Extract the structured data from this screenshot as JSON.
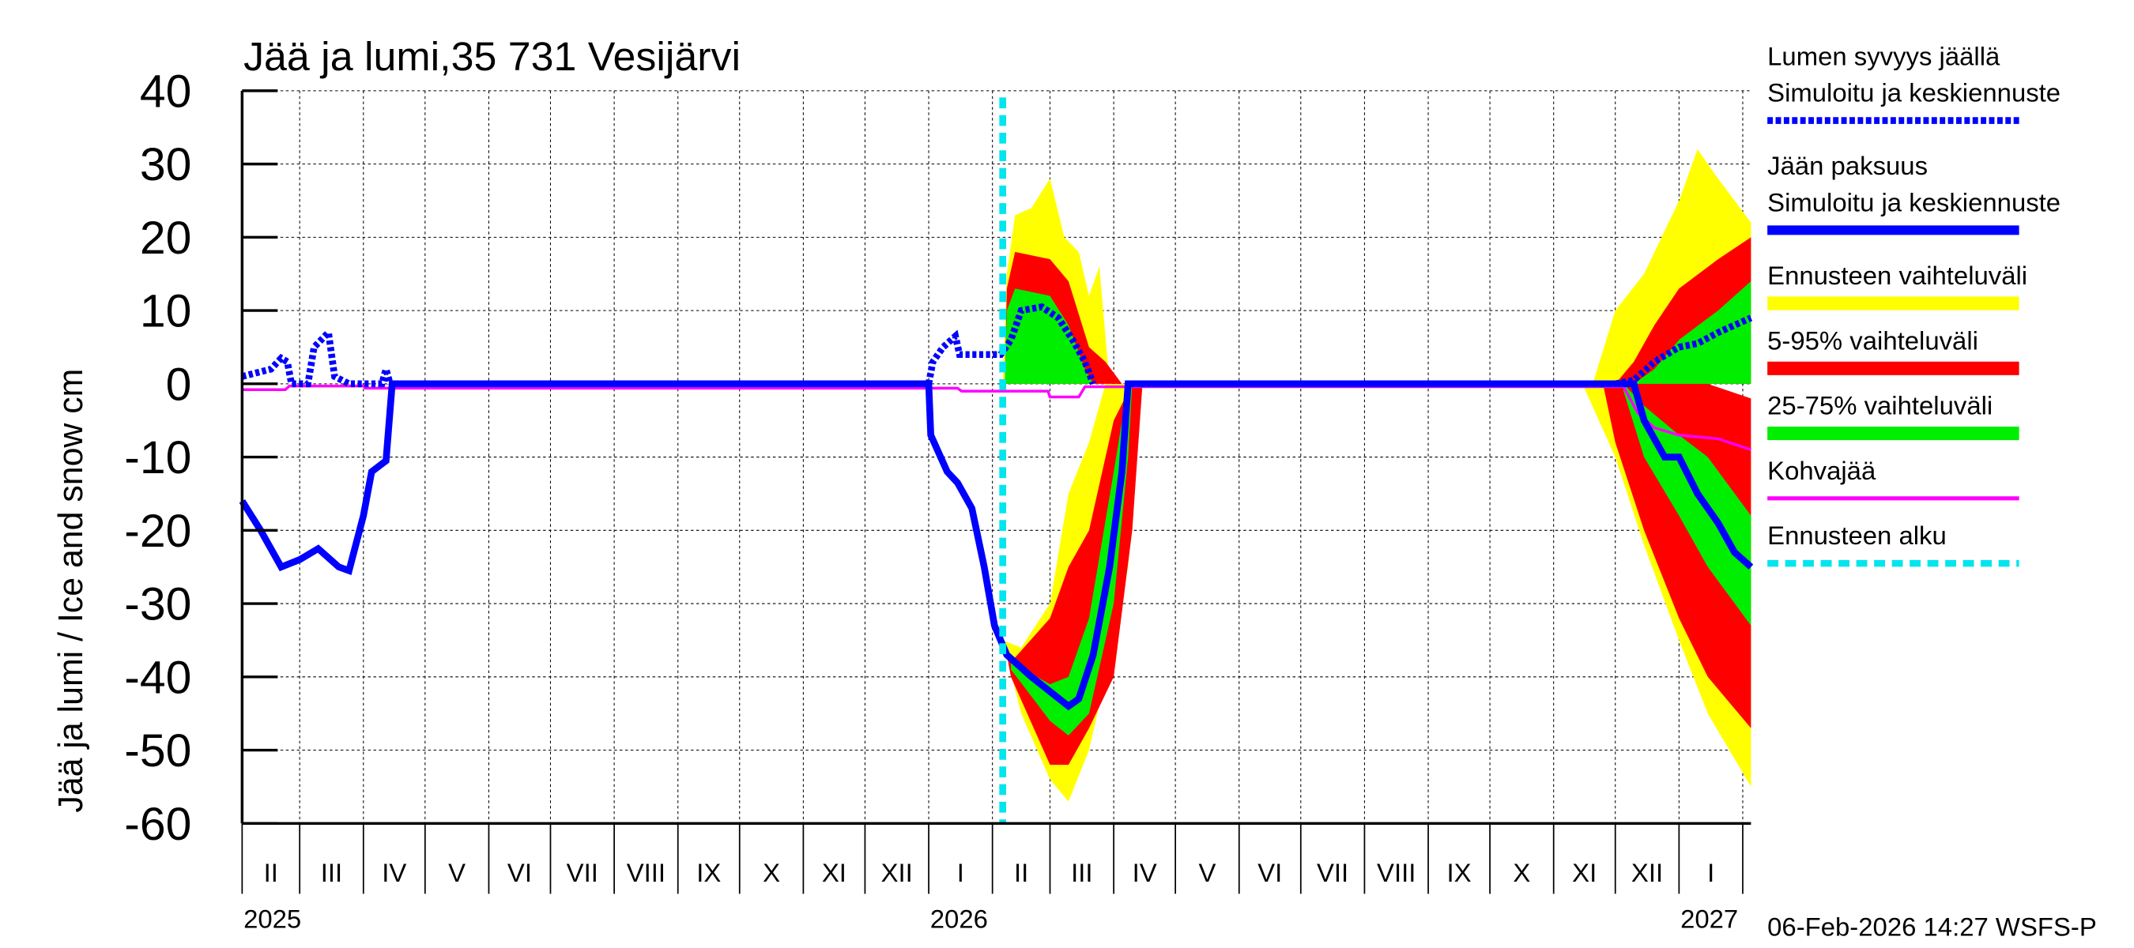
{
  "chart_data": {
    "type": "area",
    "title": "Jää ja lumi,35 731 Vesijärvi",
    "ylabel": "Jää ja lumi / Ice and snow    cm",
    "ylim": [
      -60,
      40
    ],
    "yticks": [
      40,
      30,
      20,
      10,
      0,
      -10,
      -20,
      -30,
      -40,
      -50,
      -60
    ],
    "xlim": [
      "2025-02-01",
      "2027-02-05"
    ],
    "grid": true,
    "legend_placement": "right",
    "months": [
      "II",
      "III",
      "IV",
      "V",
      "VI",
      "VII",
      "VIII",
      "IX",
      "X",
      "XI",
      "XII",
      "I",
      "II",
      "III",
      "IV",
      "V",
      "VI",
      "VII",
      "VIII",
      "IX",
      "X",
      "XI",
      "XII",
      "I"
    ],
    "month_starts": [
      "2025-02-01",
      "2025-03-01",
      "2025-04-01",
      "2025-05-01",
      "2025-06-01",
      "2025-07-01",
      "2025-08-01",
      "2025-09-01",
      "2025-10-01",
      "2025-11-01",
      "2025-12-01",
      "2026-01-01",
      "2026-02-01",
      "2026-03-01",
      "2026-04-01",
      "2026-05-01",
      "2026-06-01",
      "2026-07-01",
      "2026-08-01",
      "2026-09-01",
      "2026-10-01",
      "2026-11-01",
      "2026-12-01",
      "2027-01-01",
      "2027-02-01"
    ],
    "years": [
      {
        "label": "2025",
        "date": "2025-02-01"
      },
      {
        "label": "2026",
        "date": "2026-01-01"
      },
      {
        "label": "2027",
        "date": "2027-01-01"
      }
    ],
    "forecast_start": "2026-02-06",
    "colors": {
      "snow": "#0000ff",
      "ice": "#0000ff",
      "range": "#ffff00",
      "p5_95": "#ff0000",
      "p25_75": "#00ee00",
      "slush": "#ff00ff",
      "forecast_start": "#00e5ee"
    },
    "bands": {
      "range": [
        [
          [
            "2026-02-06",
            0,
            0
          ],
          [
            "2026-02-08",
            0,
            15
          ],
          [
            "2026-02-12",
            0,
            23
          ],
          [
            "2026-02-20",
            0,
            24
          ],
          [
            "2026-03-01",
            0,
            28
          ],
          [
            "2026-03-08",
            0,
            20
          ],
          [
            "2026-03-15",
            0,
            18
          ],
          [
            "2026-03-20",
            0,
            12
          ],
          [
            "2026-03-25",
            0,
            16
          ],
          [
            "2026-03-30",
            0,
            0
          ]
        ],
        [
          [
            "2026-02-06",
            -35,
            -35
          ],
          [
            "2026-02-15",
            -36,
            -45
          ],
          [
            "2026-03-01",
            -30,
            -54
          ],
          [
            "2026-03-10",
            -15,
            -57
          ],
          [
            "2026-03-20",
            -8,
            -50
          ],
          [
            "2026-03-28",
            0,
            -40
          ],
          [
            "2026-04-08",
            0,
            -25
          ],
          [
            "2026-04-15",
            0,
            0
          ]
        ],
        [
          [
            "2026-11-20",
            0,
            0
          ],
          [
            "2026-12-01",
            0,
            10
          ],
          [
            "2026-12-15",
            0,
            15
          ],
          [
            "2027-01-01",
            0,
            25
          ],
          [
            "2027-01-10",
            0,
            32
          ],
          [
            "2027-01-20",
            0,
            28
          ],
          [
            "2027-02-05",
            0,
            22
          ]
        ],
        [
          [
            "2026-11-15",
            0,
            0
          ],
          [
            "2026-12-01",
            -10,
            0
          ],
          [
            "2026-12-15",
            -22,
            0
          ],
          [
            "2027-01-01",
            -35,
            0
          ],
          [
            "2027-01-15",
            -45,
            -5
          ],
          [
            "2027-02-05",
            -55,
            -10
          ]
        ]
      ],
      "p5_95": [
        [
          [
            "2026-02-07",
            0,
            0
          ],
          [
            "2026-02-08",
            0,
            13
          ],
          [
            "2026-02-12",
            0,
            18
          ],
          [
            "2026-03-01",
            0,
            17
          ],
          [
            "2026-03-10",
            0,
            14
          ],
          [
            "2026-03-20",
            0,
            5
          ],
          [
            "2026-03-28",
            0,
            3
          ],
          [
            "2026-04-05",
            0,
            0
          ]
        ],
        [
          [
            "2026-02-08",
            -37,
            -37
          ],
          [
            "2026-02-10",
            -38,
            -40
          ],
          [
            "2026-03-01",
            -32,
            -52
          ],
          [
            "2026-03-10",
            -25,
            -52
          ],
          [
            "2026-03-20",
            -20,
            -47
          ],
          [
            "2026-04-01",
            -5,
            -40
          ],
          [
            "2026-04-10",
            0,
            -20
          ],
          [
            "2026-04-15",
            0,
            0
          ]
        ],
        [
          [
            "2026-12-01",
            0,
            0
          ],
          [
            "2026-12-10",
            0,
            3
          ],
          [
            "2026-12-20",
            0,
            8
          ],
          [
            "2027-01-01",
            0,
            13
          ],
          [
            "2027-01-20",
            0,
            17
          ],
          [
            "2027-02-05",
            0,
            20
          ]
        ],
        [
          [
            "2026-11-25",
            0,
            0
          ],
          [
            "2026-12-01",
            -8,
            0
          ],
          [
            "2026-12-15",
            -20,
            0
          ],
          [
            "2027-01-01",
            -32,
            0
          ],
          [
            "2027-01-15",
            -40,
            0
          ],
          [
            "2027-02-05",
            -47,
            -2
          ]
        ]
      ],
      "p25_75": [
        [
          [
            "2026-02-07",
            0,
            0
          ],
          [
            "2026-02-08",
            0,
            10
          ],
          [
            "2026-02-12",
            0,
            13
          ],
          [
            "2026-03-01",
            0,
            12
          ],
          [
            "2026-03-10",
            0,
            8
          ],
          [
            "2026-03-18",
            0,
            2
          ],
          [
            "2026-03-22",
            0,
            0
          ]
        ],
        [
          [
            "2026-02-10",
            -38,
            -39
          ],
          [
            "2026-03-01",
            -41,
            -46
          ],
          [
            "2026-03-10",
            -40,
            -48
          ],
          [
            "2026-03-20",
            -32,
            -45
          ],
          [
            "2026-04-01",
            -12,
            -30
          ],
          [
            "2026-04-08",
            0,
            -10
          ],
          [
            "2026-04-10",
            0,
            0
          ]
        ],
        [
          [
            "2026-12-10",
            0,
            0
          ],
          [
            "2026-12-20",
            0,
            2
          ],
          [
            "2027-01-01",
            0,
            6
          ],
          [
            "2027-01-20",
            0,
            10
          ],
          [
            "2027-02-05",
            0,
            14
          ]
        ],
        [
          [
            "2026-12-05",
            -1,
            0
          ],
          [
            "2026-12-15",
            -10,
            -3
          ],
          [
            "2027-01-01",
            -18,
            -7
          ],
          [
            "2027-01-15",
            -25,
            -10
          ],
          [
            "2027-02-05",
            -33,
            -18
          ]
        ]
      ]
    },
    "series": [
      {
        "name": "Lumen syvyys jäällä",
        "style": "dotted",
        "segments": [
          [
            [
              "2025-02-01",
              1
            ],
            [
              "2025-02-15",
              2
            ],
            [
              "2025-02-20",
              3.5
            ],
            [
              "2025-02-23",
              3
            ],
            [
              "2025-02-25",
              0
            ],
            [
              "2025-03-05",
              0
            ],
            [
              "2025-03-08",
              5
            ],
            [
              "2025-03-15",
              7
            ],
            [
              "2025-03-18",
              1
            ],
            [
              "2025-03-25",
              0
            ],
            [
              "2025-04-10",
              0
            ],
            [
              "2025-04-12",
              2
            ],
            [
              "2025-04-14",
              0
            ]
          ],
          [
            [
              "2026-01-01",
              0
            ],
            [
              "2026-01-03",
              3
            ],
            [
              "2026-01-08",
              5
            ],
            [
              "2026-01-14",
              6.5
            ],
            [
              "2026-01-16",
              4
            ],
            [
              "2026-02-05",
              4
            ],
            [
              "2026-02-10",
              6
            ],
            [
              "2026-02-15",
              10
            ],
            [
              "2026-02-25",
              10.5
            ],
            [
              "2026-03-05",
              9
            ],
            [
              "2026-03-12",
              6
            ],
            [
              "2026-03-18",
              3
            ],
            [
              "2026-03-22",
              0
            ]
          ],
          [
            [
              "2026-12-01",
              0
            ],
            [
              "2026-12-10",
              0.5
            ],
            [
              "2026-12-20",
              3
            ],
            [
              "2027-01-01",
              5
            ],
            [
              "2027-01-10",
              5.5
            ],
            [
              "2027-01-20",
              7
            ],
            [
              "2027-02-05",
              9
            ]
          ]
        ]
      },
      {
        "name": "Jään paksuus",
        "style": "solid",
        "segments": [
          [
            [
              "2025-02-01",
              -16
            ],
            [
              "2025-02-10",
              -20
            ],
            [
              "2025-02-20",
              -25
            ],
            [
              "2025-03-01",
              -24
            ],
            [
              "2025-03-10",
              -22.5
            ],
            [
              "2025-03-20",
              -25
            ],
            [
              "2025-03-25",
              -25.5
            ],
            [
              "2025-04-01",
              -18
            ],
            [
              "2025-04-05",
              -12
            ],
            [
              "2025-04-12",
              -10.5
            ],
            [
              "2025-04-15",
              0
            ],
            [
              "2026-01-01",
              0
            ],
            [
              "2026-01-02",
              -7
            ],
            [
              "2026-01-10",
              -12
            ],
            [
              "2026-01-15",
              -13.5
            ],
            [
              "2026-01-22",
              -17
            ],
            [
              "2026-01-28",
              -25
            ],
            [
              "2026-02-02",
              -33
            ],
            [
              "2026-02-08",
              -37
            ],
            [
              "2026-02-20",
              -40
            ],
            [
              "2026-03-01",
              -42
            ],
            [
              "2026-03-10",
              -44
            ],
            [
              "2026-03-15",
              -43
            ],
            [
              "2026-03-22",
              -37
            ],
            [
              "2026-03-30",
              -25
            ],
            [
              "2026-04-05",
              -12
            ],
            [
              "2026-04-08",
              0
            ],
            [
              "2026-12-10",
              0
            ],
            [
              "2026-12-15",
              -5
            ],
            [
              "2026-12-25",
              -10
            ],
            [
              "2027-01-01",
              -10
            ],
            [
              "2027-01-10",
              -15
            ],
            [
              "2027-01-20",
              -19
            ],
            [
              "2027-01-28",
              -23
            ],
            [
              "2027-02-05",
              -25
            ]
          ]
        ]
      },
      {
        "name": "Kohvajää",
        "style": "thin",
        "segments": [
          [
            [
              "2025-02-01",
              -0.8
            ],
            [
              "2025-02-22",
              -0.8
            ],
            [
              "2025-02-24",
              -0.3
            ],
            [
              "2025-04-01",
              -0.3
            ],
            [
              "2025-04-02",
              -0.6
            ],
            [
              "2026-01-15",
              -0.6
            ],
            [
              "2026-01-17",
              -1
            ],
            [
              "2026-02-28",
              -1
            ],
            [
              "2026-03-01",
              -1.8
            ],
            [
              "2026-03-15",
              -1.8
            ],
            [
              "2026-03-18",
              -0.4
            ],
            [
              "2026-12-05",
              -0.4
            ],
            [
              "2026-12-12",
              -4
            ],
            [
              "2026-12-20",
              -6
            ],
            [
              "2027-01-01",
              -7
            ],
            [
              "2027-01-20",
              -7.5
            ],
            [
              "2027-02-05",
              -9
            ]
          ]
        ]
      }
    ]
  },
  "legend": [
    {
      "line1": "Lumen syvyys jäällä",
      "line2": "Simuloitu ja keskiennuste",
      "color": "#0000ff",
      "style": "dotted"
    },
    {
      "line1": "Jään paksuus",
      "line2": "Simuloitu ja keskiennuste",
      "color": "#0000ff",
      "style": "solid"
    },
    {
      "line1": "Ennusteen vaihteluväli",
      "color": "#ffff00",
      "style": "bar"
    },
    {
      "line1": "5-95% vaihteluväli",
      "color": "#ff0000",
      "style": "bar"
    },
    {
      "line1": "25-75% vaihteluväli",
      "color": "#00ee00",
      "style": "bar"
    },
    {
      "line1": "Kohvajää",
      "color": "#ff00ff",
      "style": "thin"
    },
    {
      "line1": "Ennusteen alku",
      "color": "#00e5ee",
      "style": "dashed"
    }
  ],
  "footer": "06-Feb-2026 14:27 WSFS-P"
}
